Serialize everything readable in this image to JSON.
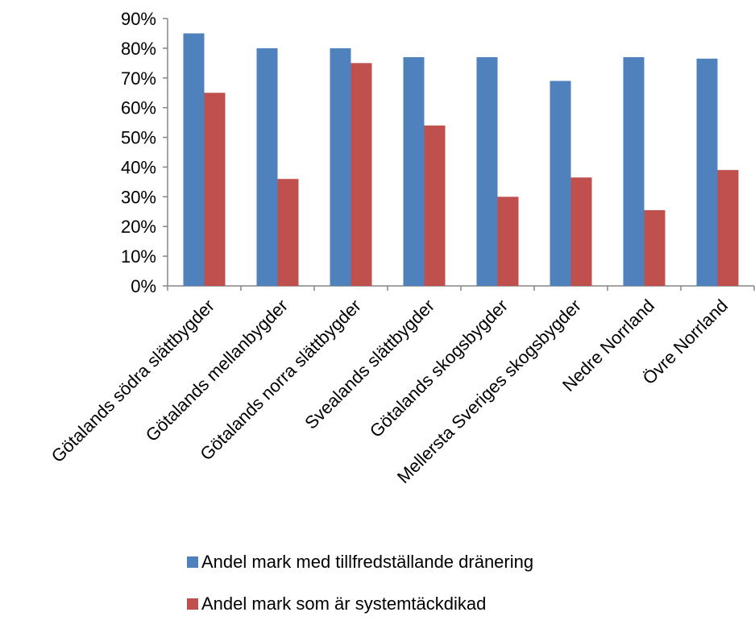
{
  "chart_data": {
    "type": "bar",
    "title": "",
    "xlabel": "",
    "ylabel": "",
    "categories": [
      "Götalands södra slättbygder",
      "Götalands mellanbygder",
      "Götalands norra slättbygder",
      "Svealands slättbygder",
      "Götalands skogsbygder",
      "Mellersta Sveriges skogsbygder",
      "Nedre Norrland",
      "Övre Norrland"
    ],
    "series": [
      {
        "name": "Andel mark med tillfredställande dränering",
        "color": "#4F81BD",
        "values": [
          85,
          80,
          80,
          77,
          77,
          69,
          77,
          76.5
        ]
      },
      {
        "name": "Andel mark som är systemtäckdikad",
        "color": "#C0504D",
        "values": [
          65,
          36,
          75,
          54,
          30,
          36.5,
          25.5,
          39
        ]
      }
    ],
    "ylim": [
      0,
      90
    ],
    "yticks": [
      0,
      10,
      20,
      30,
      40,
      50,
      60,
      70,
      80,
      90
    ],
    "ytick_labels": [
      "0%",
      "10%",
      "20%",
      "30%",
      "40%",
      "50%",
      "60%",
      "70%",
      "80%",
      "90%"
    ],
    "grid": false,
    "legend_position": "bottom"
  }
}
